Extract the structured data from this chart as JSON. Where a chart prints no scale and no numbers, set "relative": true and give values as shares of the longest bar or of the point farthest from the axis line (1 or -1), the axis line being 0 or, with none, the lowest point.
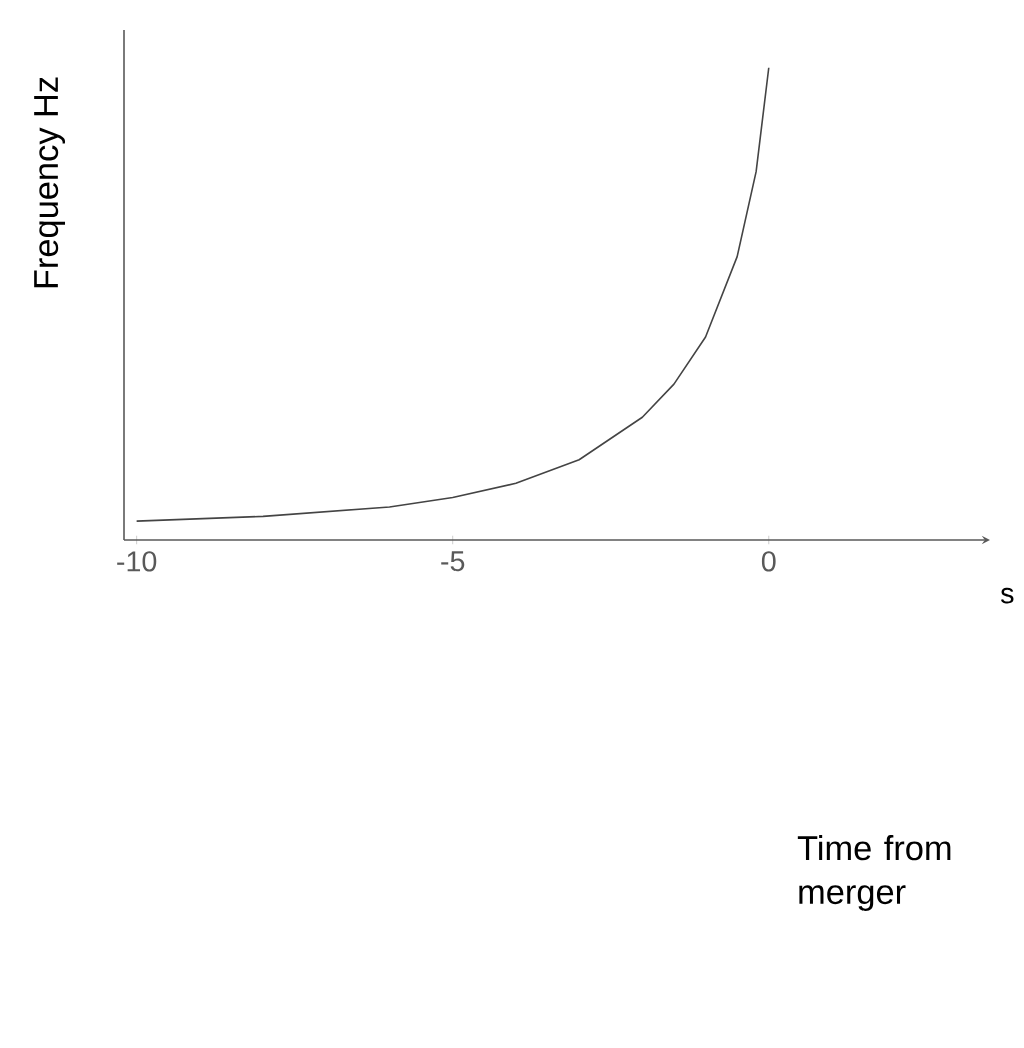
{
  "chart_data": {
    "type": "line",
    "xlabel": "s",
    "ylabel": "Frequency Hz",
    "relative": true,
    "x": [
      -10,
      -8,
      -6,
      -5,
      -4,
      -3,
      -2,
      -1.5,
      -1,
      -0.5,
      -0.2,
      0
    ],
    "values": [
      0.04,
      0.05,
      0.07,
      0.09,
      0.12,
      0.17,
      0.26,
      0.33,
      0.43,
      0.6,
      0.78,
      1.0
    ],
    "color": "#444444",
    "xlim": [
      -10.2,
      3.5
    ],
    "xticks": [
      -10,
      -5,
      0
    ],
    "annotations": [
      "Time from merger"
    ]
  }
}
